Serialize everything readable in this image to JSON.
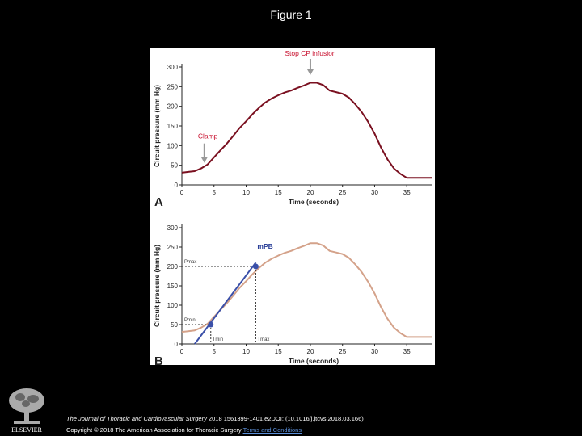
{
  "page": {
    "title": "Figure 1"
  },
  "chart_data": [
    {
      "type": "line",
      "panel_label": "A",
      "xlabel": "Time (seconds)",
      "ylabel": "Circuit pressure (mm Hg)",
      "xlim": [
        0,
        39
      ],
      "ylim": [
        0,
        300
      ],
      "xticks": [
        0,
        5,
        10,
        15,
        20,
        25,
        30,
        35
      ],
      "yticks": [
        0,
        50,
        100,
        150,
        200,
        250,
        300
      ],
      "series": [
        {
          "color": "#7a1020",
          "x": [
            0,
            1,
            2,
            3,
            4,
            5,
            6,
            7,
            8,
            9,
            10,
            11,
            12,
            13,
            14,
            15,
            16,
            17,
            18,
            19,
            20,
            21,
            22,
            23,
            24,
            25,
            26,
            27,
            28,
            29,
            30,
            31,
            32,
            33,
            34,
            35,
            36,
            37,
            38,
            39
          ],
          "y": [
            31,
            33,
            35,
            42,
            52,
            70,
            88,
            105,
            125,
            145,
            162,
            180,
            196,
            210,
            220,
            228,
            235,
            240,
            247,
            253,
            260,
            260,
            254,
            240,
            236,
            232,
            222,
            205,
            185,
            160,
            130,
            95,
            65,
            42,
            28,
            18,
            18,
            18,
            18,
            18
          ]
        }
      ],
      "annotations": [
        {
          "text": "Stop CP infusion",
          "x": 20,
          "y": 260,
          "color": "#c8102e"
        },
        {
          "text": "Clamp",
          "x": 3.5,
          "y": 52,
          "color": "#c8102e"
        }
      ]
    },
    {
      "type": "line",
      "panel_label": "B",
      "xlabel": "Time (seconds)",
      "ylabel": "Circuit pressure (mm Hg)",
      "xlim": [
        0,
        39
      ],
      "ylim": [
        0,
        300
      ],
      "xticks": [
        0,
        5,
        10,
        15,
        20,
        25,
        30,
        35
      ],
      "yticks": [
        0,
        50,
        100,
        150,
        200,
        250,
        300
      ],
      "series": [
        {
          "color": "#d4a28a",
          "x": [
            0,
            1,
            2,
            3,
            4,
            5,
            6,
            7,
            8,
            9,
            10,
            11,
            12,
            13,
            14,
            15,
            16,
            17,
            18,
            19,
            20,
            21,
            22,
            23,
            24,
            25,
            26,
            27,
            28,
            29,
            30,
            31,
            32,
            33,
            34,
            35,
            36,
            37,
            38,
            39
          ],
          "y": [
            31,
            33,
            35,
            42,
            52,
            70,
            88,
            105,
            125,
            145,
            162,
            180,
            196,
            210,
            220,
            228,
            235,
            240,
            247,
            253,
            260,
            260,
            254,
            240,
            236,
            232,
            222,
            205,
            185,
            160,
            130,
            95,
            65,
            42,
            28,
            18,
            18,
            18,
            18,
            18
          ]
        }
      ],
      "fit_line": {
        "color": "#3a4fa8",
        "x": [
          2,
          11.5
        ],
        "y": [
          0,
          210
        ]
      },
      "points": [
        {
          "x": 4.5,
          "y": 50,
          "color": "#3a4fa8"
        },
        {
          "x": 11.5,
          "y": 200,
          "color": "#3a4fa8"
        }
      ],
      "annotations": [
        {
          "text": "mPB",
          "color": "#2a3f98"
        },
        {
          "text": "Pmax",
          "color": "#333333"
        },
        {
          "text": "Pmin",
          "color": "#333333"
        },
        {
          "text": "Tmin",
          "color": "#333333"
        },
        {
          "text": "Tmax",
          "color": "#333333"
        }
      ]
    }
  ],
  "citation": {
    "journal": "The Journal of Thoracic and Cardiovascular Surgery",
    "details": " 2018 1561399-1401.e2DOI: (10.1016/j.jtcvs.2018.03.166)"
  },
  "copyright": {
    "text": "Copyright © 2018 The American Association for Thoracic Surgery",
    "link": "Terms and Conditions"
  },
  "logo": {
    "text": "ELSEVIER"
  }
}
